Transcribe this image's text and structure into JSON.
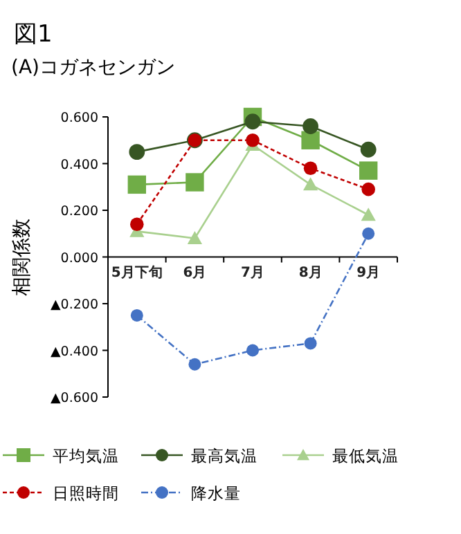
{
  "chart_data": {
    "type": "line",
    "title": "図1",
    "subtitle": "(A)コガネセンガン",
    "ylabel": "相関係数",
    "categories": [
      "5月下旬",
      "6月",
      "7月",
      "8月",
      "9月"
    ],
    "series": [
      {
        "name": "平均気温",
        "color": "#70ad47",
        "marker": "square",
        "line_style": "solid",
        "values": [
          0.31,
          0.32,
          0.6,
          0.5,
          0.37
        ]
      },
      {
        "name": "最高気温",
        "color": "#375623",
        "marker": "circle",
        "line_style": "solid",
        "values": [
          0.45,
          0.5,
          0.58,
          0.56,
          0.46
        ]
      },
      {
        "name": "最低気温",
        "color": "#a9d08e",
        "marker": "triangle",
        "line_style": "solid",
        "values": [
          0.11,
          0.08,
          0.48,
          0.31,
          0.18
        ]
      },
      {
        "name": "日照時間",
        "color": "#c00000",
        "marker": "circle",
        "line_style": "dashed",
        "values": [
          0.14,
          0.5,
          0.5,
          0.38,
          0.29
        ]
      },
      {
        "name": "降水量",
        "color": "#4472c4",
        "marker": "circle",
        "line_style": "dotted",
        "values": [
          -0.25,
          -0.46,
          -0.4,
          -0.37,
          0.1
        ]
      }
    ],
    "ylim": [
      -0.6,
      0.6
    ],
    "yticks": [
      {
        "value": -0.6,
        "label": "▲0.600"
      },
      {
        "value": -0.4,
        "label": "▲0.400"
      },
      {
        "value": -0.2,
        "label": "▲0.200"
      },
      {
        "value": 0,
        "label": "0.000"
      },
      {
        "value": 0.2,
        "label": "0.200"
      },
      {
        "value": 0.4,
        "label": "0.400"
      },
      {
        "value": 0.6,
        "label": "0.600"
      }
    ],
    "grid": false,
    "legend": "bottom"
  }
}
